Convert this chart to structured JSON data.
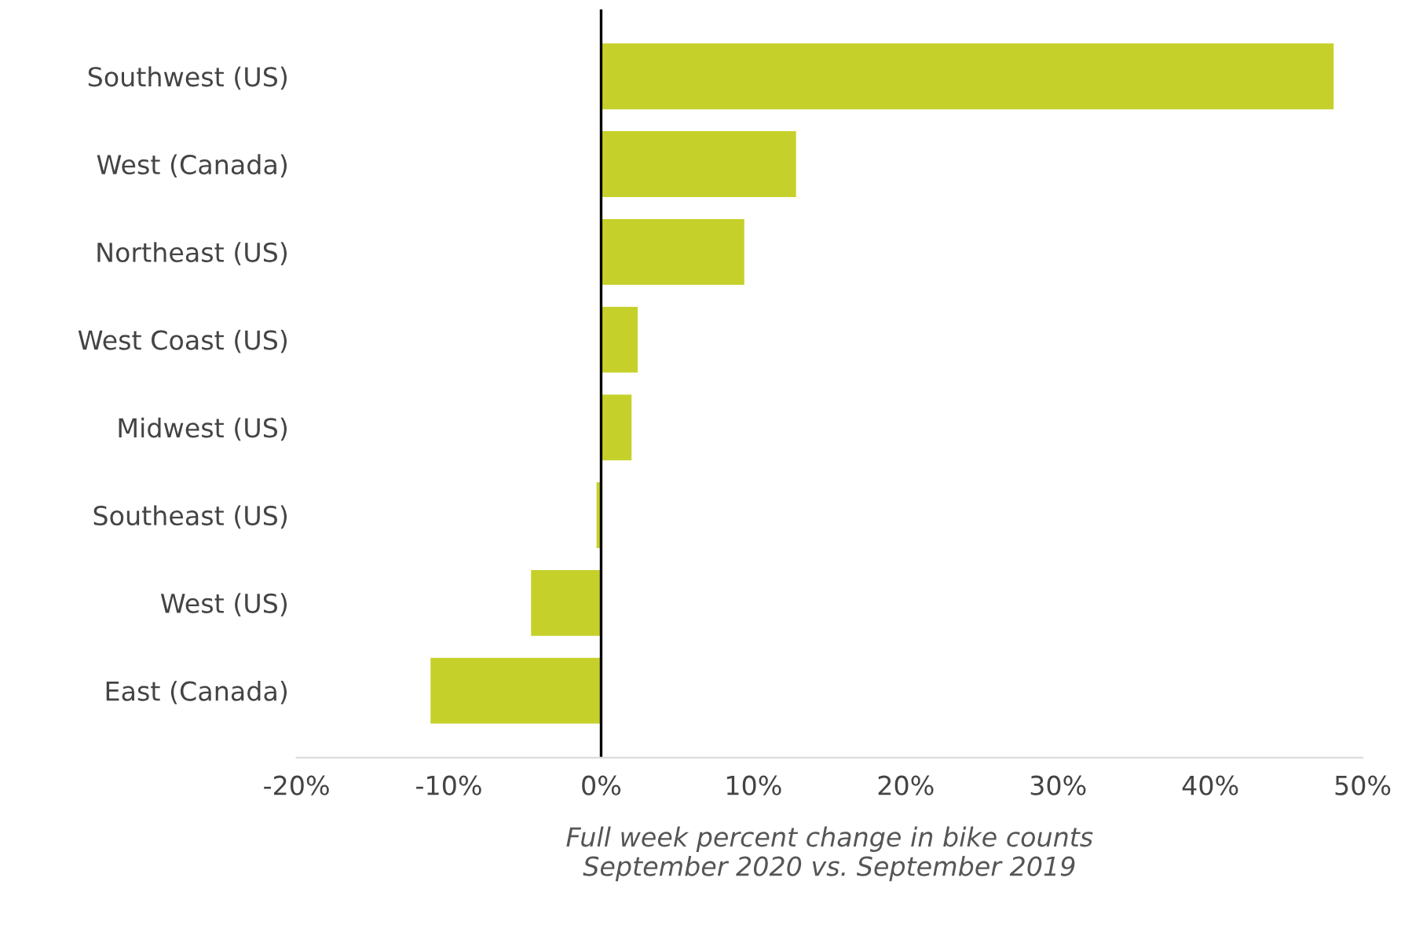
{
  "chart_data": {
    "type": "bar",
    "orientation": "horizontal",
    "categories": [
      "Southwest (US)",
      "West (Canada)",
      "Northeast (US)",
      "West Coast (US)",
      "Midwest (US)",
      "Southeast (US)",
      "West (US)",
      "East (Canada)"
    ],
    "values": [
      48.1,
      12.8,
      9.4,
      2.4,
      2.0,
      -0.3,
      -4.6,
      -11.2
    ],
    "color": "#c5d12a",
    "xlim": [
      -20,
      50
    ],
    "xticks": [
      {
        "value": -20,
        "label": "-20%"
      },
      {
        "value": -10,
        "label": "-10%"
      },
      {
        "value": 0,
        "label": "0%"
      },
      {
        "value": 10,
        "label": "10%"
      },
      {
        "value": 20,
        "label": "20%"
      },
      {
        "value": 30,
        "label": "30%"
      },
      {
        "value": 40,
        "label": "40%"
      },
      {
        "value": 50,
        "label": "50%"
      }
    ],
    "xlabel": "Full week percent change in bike counts\nSeptember 2020 vs. September 2019",
    "ref_lines": [
      {
        "axis": "x",
        "value": 0,
        "color": "#000000"
      }
    ],
    "grid": false
  }
}
